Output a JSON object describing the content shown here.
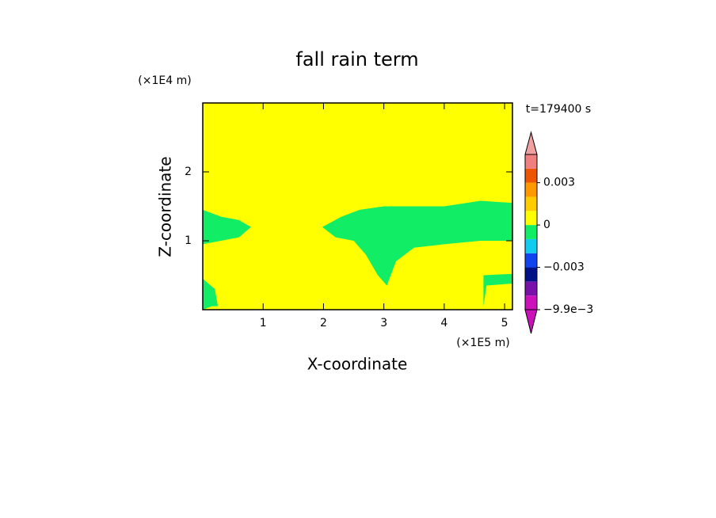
{
  "chart_data": {
    "type": "contour",
    "title": "fall rain term",
    "x_label": "X-coordinate",
    "y_label": "Z-coordinate",
    "x_unit": "(×1E5 m)",
    "y_unit": "(×1E4 m)",
    "annotation": "t=179400 s",
    "xlim": [
      0,
      5.13
    ],
    "ylim": [
      0,
      3
    ],
    "xticks": [
      1,
      2,
      3,
      4,
      5
    ],
    "yticks": [
      1,
      2
    ],
    "field_color": "#ffff00",
    "fill_regions": [
      {
        "color": "#11ee66",
        "x": [
          0,
          0.3,
          0.6,
          0.8,
          0.6,
          0.3,
          0
        ],
        "y": [
          1.45,
          1.35,
          1.3,
          1.2,
          1.05,
          1.0,
          0.95
        ]
      },
      {
        "color": "#11ee66",
        "x": [
          1.98,
          2.3,
          2.6,
          3.0,
          3.5,
          4.0,
          4.6,
          5.13,
          5.13,
          4.6,
          4.0,
          3.5,
          3.2,
          3.05,
          2.9,
          2.7,
          2.5,
          2.2
        ],
        "y": [
          1.2,
          1.35,
          1.45,
          1.5,
          1.5,
          1.5,
          1.58,
          1.55,
          1.0,
          1.0,
          0.95,
          0.9,
          0.7,
          0.35,
          0.5,
          0.8,
          1.0,
          1.05
        ]
      },
      {
        "color": "#11ee66",
        "x": [
          0,
          0.2,
          0.25,
          0.15,
          0
        ],
        "y": [
          0.45,
          0.3,
          0.05,
          0.05,
          0
        ]
      },
      {
        "color": "#11ee66",
        "x": [
          4.65,
          5.13,
          5.13,
          4.7,
          4.65
        ],
        "y": [
          0.5,
          0.52,
          0.38,
          0.35,
          0.05
        ]
      }
    ],
    "colorbar": {
      "levels": [
        -0.0099,
        -0.0066,
        -0.0045,
        -0.003,
        -0.002,
        -0.001,
        0,
        0.001,
        0.002,
        0.003,
        0.004,
        0.005
      ],
      "colors": [
        "#cc11bb",
        "#7711aa",
        "#001188",
        "#1144ee",
        "#11ccee",
        "#11ee66",
        "#ffff00",
        "#ffcc00",
        "#ff9900",
        "#ee5500",
        "#f08080"
      ],
      "under_color": "#cc11bb",
      "over_color": "#f0a0a0",
      "ticks": [
        {
          "value": 0.003,
          "label": "0.003"
        },
        0,
        {
          "value": -0.003,
          "label": "−0.003"
        },
        {
          "value": -0.0099,
          "label": "−9.9e−3"
        }
      ]
    }
  }
}
